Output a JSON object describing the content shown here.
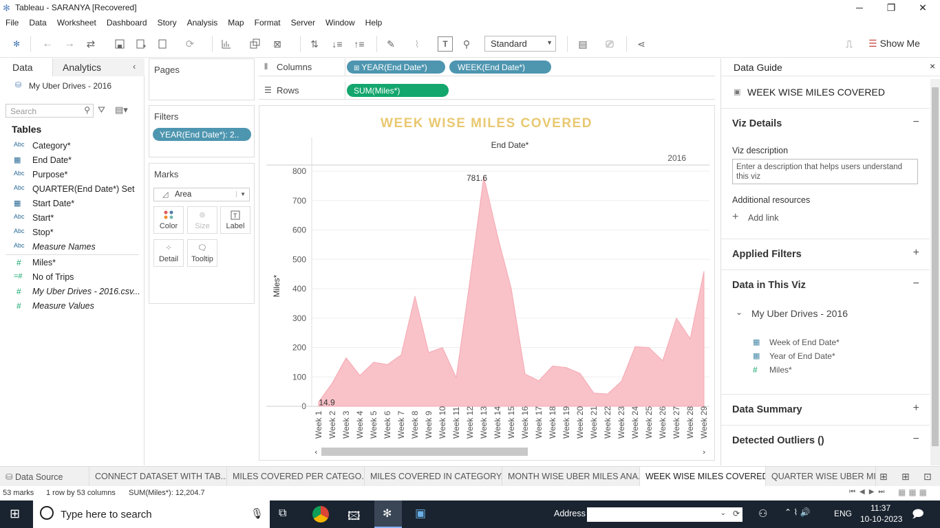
{
  "window": {
    "title": "Tableau - SARANYA [Recovered]",
    "minimize": "─",
    "restore": "❐",
    "close": "✕"
  },
  "menu": [
    "File",
    "Data",
    "Worksheet",
    "Dashboard",
    "Story",
    "Analysis",
    "Map",
    "Format",
    "Server",
    "Window",
    "Help"
  ],
  "toolbar": {
    "fit_mode": "Standard",
    "show_me": "Show Me"
  },
  "data_pane": {
    "tab_data": "Data",
    "tab_analytics": "Analytics",
    "datasource": "My Uber Drives - 2016",
    "search_placeholder": "Search",
    "tables_header": "Tables",
    "fields": [
      {
        "type": "Abc",
        "name": "Category*",
        "italic": false
      },
      {
        "type": "date",
        "name": "End Date*",
        "italic": false
      },
      {
        "type": "Abc",
        "name": "Purpose*",
        "italic": false
      },
      {
        "type": "Abc",
        "name": "QUARTER(End Date*) Set",
        "italic": false
      },
      {
        "type": "date",
        "name": "Start Date*",
        "italic": false
      },
      {
        "type": "Abc",
        "name": "Start*",
        "italic": false
      },
      {
        "type": "Abc",
        "name": "Stop*",
        "italic": false
      },
      {
        "type": "Abc",
        "name": "Measure Names",
        "italic": true
      },
      {
        "type": "#",
        "name": "Miles*",
        "italic": false
      },
      {
        "type": "=#",
        "name": "No of Trips",
        "italic": false
      },
      {
        "type": "#",
        "name": "My Uber Drives - 2016.csv...",
        "italic": true
      },
      {
        "type": "#",
        "name": "Measure Values",
        "italic": true
      }
    ]
  },
  "shelves": {
    "pages": "Pages",
    "filters": "Filters",
    "filter_pill": "YEAR(End Date*): 2..",
    "marks": "Marks",
    "mark_type": "Area",
    "mark_buttons": [
      "Color",
      "Size",
      "Label",
      "Detail",
      "Tooltip"
    ],
    "columns_label": "Columns",
    "rows_label": "Rows",
    "columns": [
      "YEAR(End Date*)",
      "WEEK(End Date*)"
    ],
    "rows": [
      "SUM(Miles*)"
    ]
  },
  "chart_data": {
    "type": "area",
    "title": "WEEK WISE MILES COVERED",
    "header": "End Date*",
    "year_label": "2016",
    "ylabel": "Miles*",
    "ylim": [
      0,
      800
    ],
    "yticks": [
      0,
      100,
      200,
      300,
      400,
      500,
      600,
      700,
      800
    ],
    "categories": [
      "Week 1",
      "Week 2",
      "Week 3",
      "Week 4",
      "Week 5",
      "Week 6",
      "Week 7",
      "Week 8",
      "Week 9",
      "Week 10",
      "Week 11",
      "Week 12",
      "Week 13",
      "Week 14",
      "Week 15",
      "Week 16",
      "Week 17",
      "Week 18",
      "Week 19",
      "Week 20",
      "Week 21",
      "Week 22",
      "Week 23",
      "Week 24",
      "Week 25",
      "Week 26",
      "Week 27",
      "Week 28",
      "Week 29"
    ],
    "values": [
      14.9,
      80,
      165,
      105,
      150,
      142,
      175,
      375,
      183,
      200,
      98,
      430,
      781.6,
      580,
      400,
      110,
      87,
      137,
      132,
      112,
      45,
      42,
      85,
      203,
      200,
      155,
      300,
      230,
      460
    ],
    "annotations": [
      {
        "week": "Week 1",
        "label": "14.9"
      },
      {
        "week": "Week 13",
        "label": "781.6"
      }
    ],
    "color": "#f9c1c8",
    "stroke": "#f5a9b3"
  },
  "guide": {
    "title": "Data Guide",
    "sheet_name": "WEEK WISE MILES COVERED",
    "viz_details": "Viz Details",
    "viz_description_label": "Viz description",
    "viz_description_placeholder": "Enter a description that helps users understand this viz",
    "additional_resources": "Additional resources",
    "add_link": "Add link",
    "applied_filters": "Applied Filters",
    "data_in_viz": "Data in This Viz",
    "source": "My Uber Drives - 2016",
    "source_fields": [
      "Week of End Date*",
      "Year of End Date*",
      "Miles*"
    ],
    "data_summary": "Data Summary",
    "detected_outliers": "Detected Outliers ()"
  },
  "sheet_tabs": [
    "Data Source",
    "CONNECT DATASET WITH TAB...",
    "MILES COVERED PER CATEGO...",
    "MILES COVERED IN CATEGORY...",
    "MONTH WISE UBER MILES ANA...",
    "WEEK WISE MILES COVERED",
    "QUARTER WISE UBER MILE"
  ],
  "status": {
    "marks": "53 marks",
    "dims": "1 row by 53 columns",
    "sum": "SUM(Miles*): 12,204.7"
  },
  "taskbar": {
    "search": "Type here to search",
    "address": "Address",
    "lang": "ENG",
    "time": "11:37",
    "date": "10-10-2023"
  }
}
